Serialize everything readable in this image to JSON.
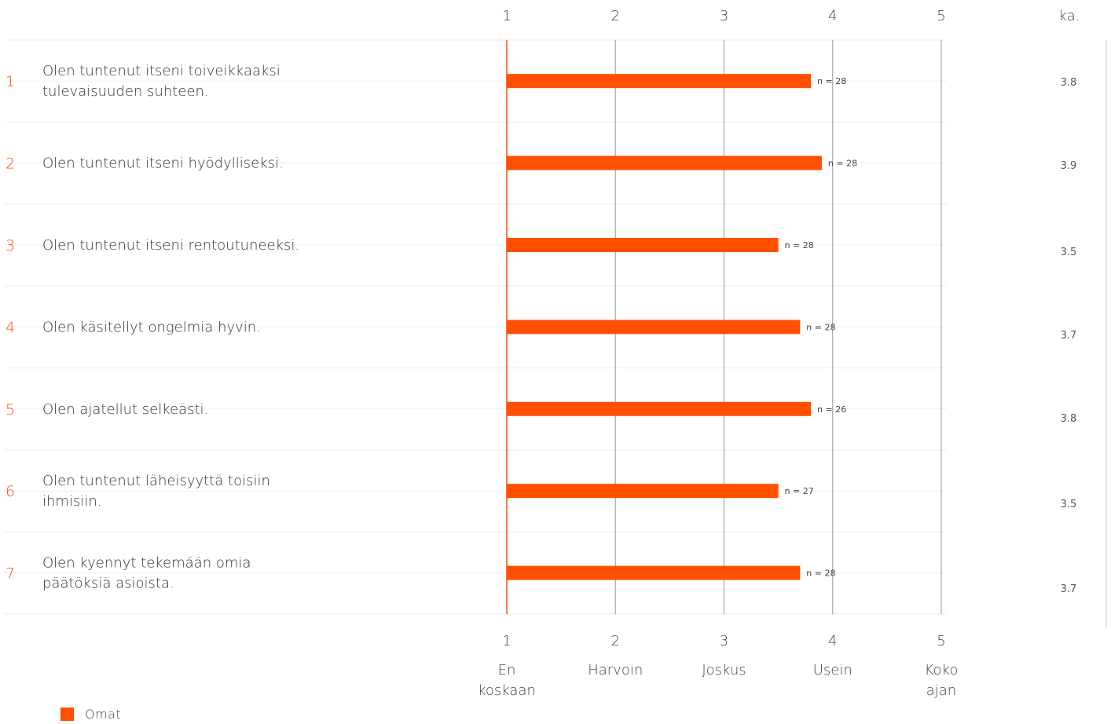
{
  "chart_data": {
    "type": "bar",
    "orientation": "horizontal",
    "avg_header": "ka.",
    "xlim": [
      1,
      5
    ],
    "x_ticks": [
      "1",
      "2",
      "3",
      "4",
      "5"
    ],
    "scale_labels": [
      [
        "En",
        "koskaan"
      ],
      [
        "Harvoin"
      ],
      [
        "Joskus"
      ],
      [
        "Usein"
      ],
      [
        "Koko",
        "ajan"
      ]
    ],
    "questions": [
      {
        "num": "1",
        "lines": [
          "Olen tuntenut itseni toiveikkaaksi",
          "tulevaisuuden suhteen."
        ],
        "value": 3.8,
        "n_label": "n = 28",
        "avg_label": "3.8"
      },
      {
        "num": "2",
        "lines": [
          "Olen tuntenut itseni hyödylliseksi."
        ],
        "value": 3.9,
        "n_label": "n = 28",
        "avg_label": "3.9"
      },
      {
        "num": "3",
        "lines": [
          "Olen tuntenut itseni rentoutuneeksi."
        ],
        "value": 3.5,
        "n_label": "n = 28",
        "avg_label": "3.5"
      },
      {
        "num": "4",
        "lines": [
          "Olen käsitellyt ongelmia hyvin."
        ],
        "value": 3.7,
        "n_label": "n = 28",
        "avg_label": "3.7"
      },
      {
        "num": "5",
        "lines": [
          "Olen ajatellut selkeästi."
        ],
        "value": 3.8,
        "n_label": "n = 26",
        "avg_label": "3.8"
      },
      {
        "num": "6",
        "lines": [
          "Olen tuntenut läheisyyttä toisiin",
          "ihmisiin."
        ],
        "value": 3.5,
        "n_label": "n = 27",
        "avg_label": "3.5"
      },
      {
        "num": "7",
        "lines": [
          "Olen kyennyt tekemään omia",
          "päätöksiä asioista."
        ],
        "value": 3.7,
        "n_label": "n = 28",
        "avg_label": "3.7"
      }
    ],
    "series": [
      {
        "name": "Omat",
        "color": "#ff5000"
      }
    ],
    "legend": "bottom-left"
  }
}
